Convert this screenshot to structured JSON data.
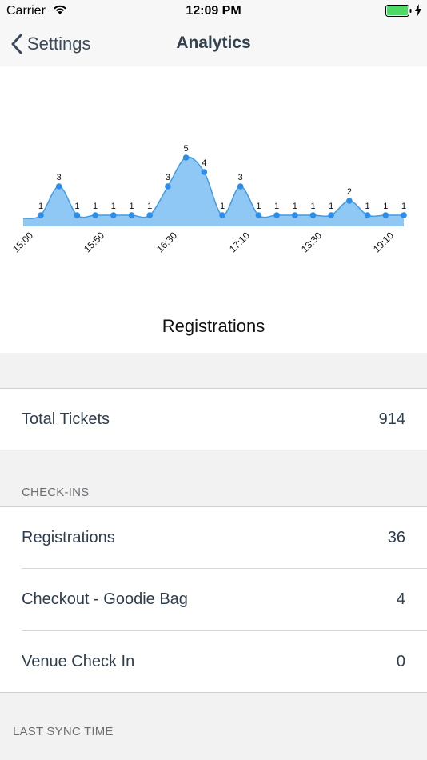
{
  "status_bar": {
    "carrier": "Carrier",
    "time": "12:09 PM",
    "battery_color": "#4cd964"
  },
  "nav": {
    "back_label": "Settings",
    "title": "Analytics"
  },
  "chart_data": {
    "type": "area",
    "title": "Registrations",
    "x_tick_labels": [
      "15:00",
      "15:50",
      "16:30",
      "17:10",
      "13:30",
      "19:10"
    ],
    "values": [
      1,
      3,
      1,
      1,
      1,
      1,
      1,
      3,
      5,
      4,
      1,
      3,
      1,
      1,
      1,
      1,
      1,
      2,
      1,
      1,
      1
    ],
    "ylim": [
      0,
      5
    ],
    "fill_color": "#90c8f5",
    "line_color": "#3f9be6",
    "point_color": "#2c8ee8"
  },
  "total": {
    "label": "Total Tickets",
    "value": "914"
  },
  "checkins": {
    "header": "CHECK-INS",
    "rows": [
      {
        "label": "Registrations",
        "value": "36"
      },
      {
        "label": "Checkout - Goodie Bag",
        "value": "4"
      },
      {
        "label": "Venue Check In",
        "value": "0"
      }
    ]
  },
  "last_sync": {
    "header": "LAST SYNC TIME"
  }
}
